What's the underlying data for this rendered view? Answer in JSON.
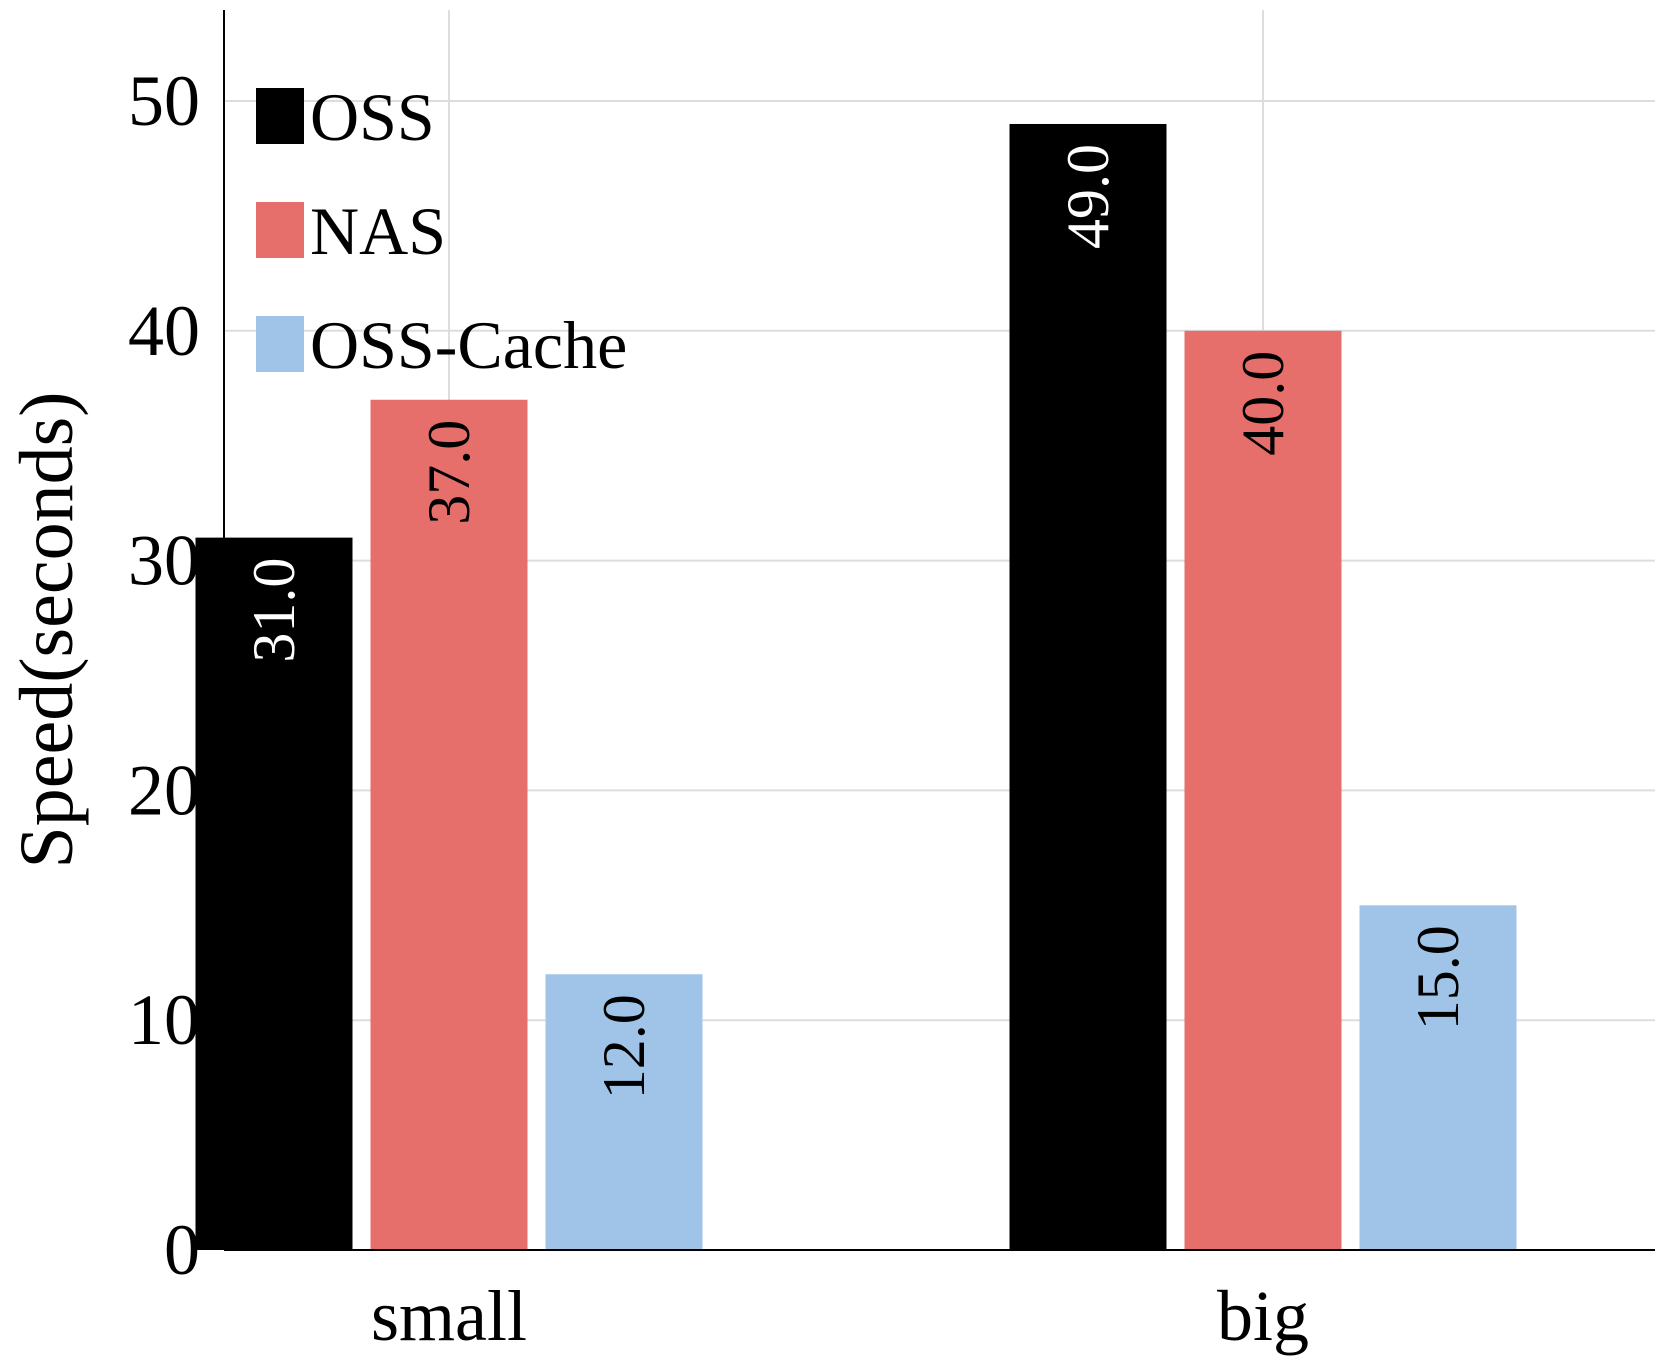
{
  "chart_data": {
    "type": "bar",
    "categories": [
      "small",
      "big"
    ],
    "series": [
      {
        "name": "OSS",
        "values": [
          31.0,
          49.0
        ],
        "color": "#000000",
        "label_color": "#ffffff"
      },
      {
        "name": "NAS",
        "values": [
          37.0,
          40.0
        ],
        "color": "#e76f6b",
        "label_color": "#000000"
      },
      {
        "name": "OSS-Cache",
        "values": [
          12.0,
          15.0
        ],
        "color": "#9fc4e7",
        "label_color": "#000000"
      }
    ],
    "value_labels": [
      [
        "31.0",
        "49.0"
      ],
      [
        "37.0",
        "40.0"
      ],
      [
        "12.0",
        "15.0"
      ]
    ],
    "xlabel": "",
    "ylabel": "Speed(seconds)",
    "ylim": [
      0,
      54
    ],
    "yticks": [
      0,
      10,
      20,
      30,
      40,
      50
    ],
    "ytick_labels": [
      "0",
      "10",
      "20",
      "30",
      "40",
      "50"
    ],
    "grid": true,
    "legend_position": "top-left",
    "grid_color": "#dddddd"
  }
}
